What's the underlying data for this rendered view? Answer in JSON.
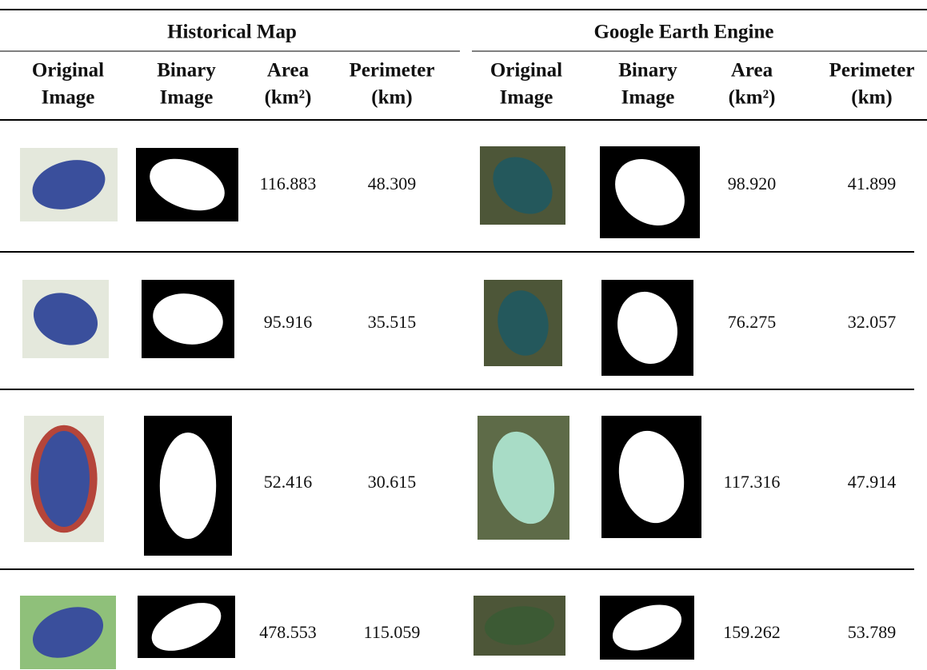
{
  "groups": [
    "Historical Map",
    "Google Earth Engine"
  ],
  "columns": [
    {
      "top": "Original",
      "bottom": "Image"
    },
    {
      "top": "Binary",
      "bottom": "Image"
    },
    {
      "top": "Area",
      "bottom": "(km²)"
    },
    {
      "top": "Perimeter",
      "bottom": "(km)"
    },
    {
      "top": "Original",
      "bottom": "Image"
    },
    {
      "top": "Binary",
      "bottom": "Image"
    },
    {
      "top": "Area",
      "bottom": "(km²)"
    },
    {
      "top": "Perimeter",
      "bottom": "(km)"
    }
  ],
  "rows": [
    [
      "116.883",
      "48.309",
      "98.920",
      "41.899"
    ],
    [
      "95.916",
      "35.515",
      "76.275",
      "32.057"
    ],
    [
      "52.416",
      "30.615",
      "117.316",
      "47.914"
    ],
    [
      "478.553",
      "115.059",
      "159.262",
      "53.789"
    ]
  ]
}
